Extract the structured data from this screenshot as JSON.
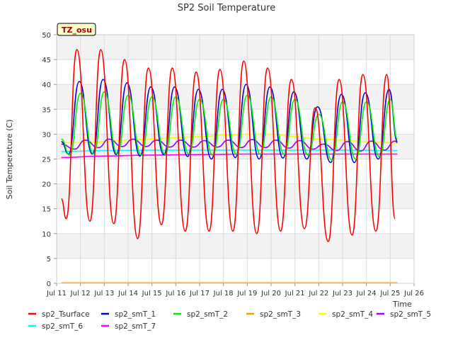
{
  "chart_data": {
    "type": "line",
    "title": "SP2 Soil Temperature",
    "xlabel": "Time",
    "ylabel": "Soil Temperature (C)",
    "xlim": [
      11,
      26
    ],
    "ylim": [
      0,
      50
    ],
    "x_ticks": [
      11,
      12,
      13,
      14,
      15,
      16,
      17,
      18,
      19,
      20,
      21,
      22,
      23,
      24,
      25,
      26
    ],
    "x_tick_labels": [
      "Jul 11",
      "Jul 12",
      "Jul 13",
      "Jul 14",
      "Jul 15",
      "Jul 16",
      "Jul 17",
      "Jul 18",
      "Jul 19",
      "Jul 20",
      "Jul 21",
      "Jul 22",
      "Jul 23",
      "Jul 24",
      "Jul 25",
      "Jul 26"
    ],
    "y_ticks": [
      0,
      5,
      10,
      15,
      20,
      25,
      30,
      35,
      40,
      45,
      50
    ],
    "y_tick_labels": [
      "0",
      "5",
      "10",
      "15",
      "20",
      "25",
      "30",
      "35",
      "40",
      "45",
      "50"
    ],
    "grid": true,
    "annotation": "TZ_osu",
    "series": [
      {
        "name": "sp2_Tsurface",
        "color": "#ff0000",
        "days": [
          11.85,
          12.85,
          13.85,
          14.85,
          15.85,
          16.85,
          17.85,
          18.85,
          19.85,
          20.85,
          21.85,
          22.85,
          23.85,
          24.85
        ],
        "maxs": [
          47.0,
          47.0,
          45.0,
          43.3,
          43.3,
          42.5,
          43.0,
          44.7,
          43.3,
          41.0,
          35.3,
          41.0,
          42.0,
          42.0
        ],
        "mins": [
          13.0,
          12.5,
          12.0,
          9.0,
          11.8,
          10.5,
          10.5,
          10.5,
          10.0,
          10.5,
          11.0,
          8.4,
          9.7,
          10.5
        ],
        "start_day": 11.2,
        "end_day": 25.2,
        "start_value": 17.0,
        "end_value": 13.0
      },
      {
        "name": "sp2_smT_1",
        "color": "#0000cc",
        "days": [
          11.95,
          12.95,
          13.95,
          14.95,
          15.95,
          16.95,
          17.95,
          18.95,
          19.95,
          20.95,
          21.95,
          22.95,
          23.95,
          24.95
        ],
        "maxs": [
          40.6,
          41.0,
          40.3,
          39.5,
          39.5,
          39.0,
          39.0,
          40.0,
          39.5,
          38.5,
          35.5,
          38.0,
          38.3,
          39.0
        ],
        "mins": [
          26.0,
          26.0,
          25.9,
          25.6,
          25.9,
          25.5,
          25.0,
          25.3,
          25.0,
          25.2,
          25.0,
          24.3,
          24.3,
          25.0
        ],
        "start_day": 11.2,
        "end_day": 25.3,
        "start_value": 28.5,
        "end_value": 28.5
      },
      {
        "name": "sp2_smT_2",
        "color": "#00ee00",
        "days": [
          12.0,
          13.0,
          14.0,
          15.0,
          16.0,
          17.0,
          18.0,
          19.0,
          20.0,
          21.0,
          22.0,
          23.0,
          24.0,
          25.0
        ],
        "maxs": [
          38.2,
          38.5,
          37.8,
          37.5,
          37.5,
          37.0,
          37.0,
          37.8,
          37.5,
          37.0,
          34.0,
          36.5,
          36.5,
          37.0
        ],
        "mins": [
          25.8,
          26.0,
          26.0,
          25.8,
          26.0,
          26.0,
          25.8,
          26.0,
          26.0,
          26.0,
          25.8,
          24.8,
          25.0,
          25.5
        ],
        "start_day": 11.2,
        "end_day": 25.3,
        "start_value": 29.0,
        "end_value": 29.0
      },
      {
        "name": "sp2_smT_3",
        "color": "#ff9900",
        "x": [
          11.2,
          25.3
        ],
        "values": [
          0.1,
          0.1
        ]
      },
      {
        "name": "sp2_smT_4",
        "color": "#ffff00",
        "x": [
          11.2,
          12.0,
          13.0,
          14.0,
          15.0,
          16.0,
          17.0,
          18.0,
          19.0,
          20.0,
          21.0,
          22.0,
          23.0,
          24.0,
          25.0,
          25.3
        ],
        "values": [
          28.3,
          28.3,
          28.5,
          28.8,
          29.0,
          29.3,
          29.5,
          29.8,
          30.0,
          30.0,
          29.5,
          29.0,
          28.8,
          28.5,
          28.3,
          28.2
        ]
      },
      {
        "name": "sp2_smT_5",
        "color": "#9900ff",
        "days": [
          12.2,
          13.2,
          14.2,
          15.2,
          16.2,
          17.2,
          18.2,
          19.2,
          20.2,
          21.2,
          22.2,
          23.2,
          24.2,
          25.2
        ],
        "maxs": [
          28.8,
          29.0,
          29.0,
          28.8,
          28.8,
          28.7,
          28.8,
          28.9,
          28.8,
          28.7,
          28.0,
          28.5,
          28.6,
          28.6
        ],
        "mins": [
          27.0,
          27.3,
          27.5,
          27.5,
          27.4,
          27.4,
          27.4,
          27.3,
          27.3,
          27.2,
          27.0,
          26.7,
          26.6,
          26.8
        ],
        "start_day": 11.2,
        "end_day": 25.3,
        "start_value": 28.0,
        "end_value": 28.3
      },
      {
        "name": "sp2_smT_6",
        "color": "#00ffff",
        "x": [
          11.2,
          13.0,
          15.0,
          17.0,
          19.0,
          21.0,
          23.0,
          25.3
        ],
        "values": [
          26.5,
          26.7,
          26.8,
          26.8,
          26.8,
          26.8,
          26.8,
          26.7
        ]
      },
      {
        "name": "sp2_smT_7",
        "color": "#ff00ff",
        "x": [
          11.2,
          13.0,
          15.0,
          17.0,
          19.0,
          21.0,
          23.0,
          25.3
        ],
        "values": [
          25.3,
          25.6,
          25.8,
          25.9,
          26.0,
          26.0,
          26.0,
          26.0
        ]
      }
    ]
  }
}
